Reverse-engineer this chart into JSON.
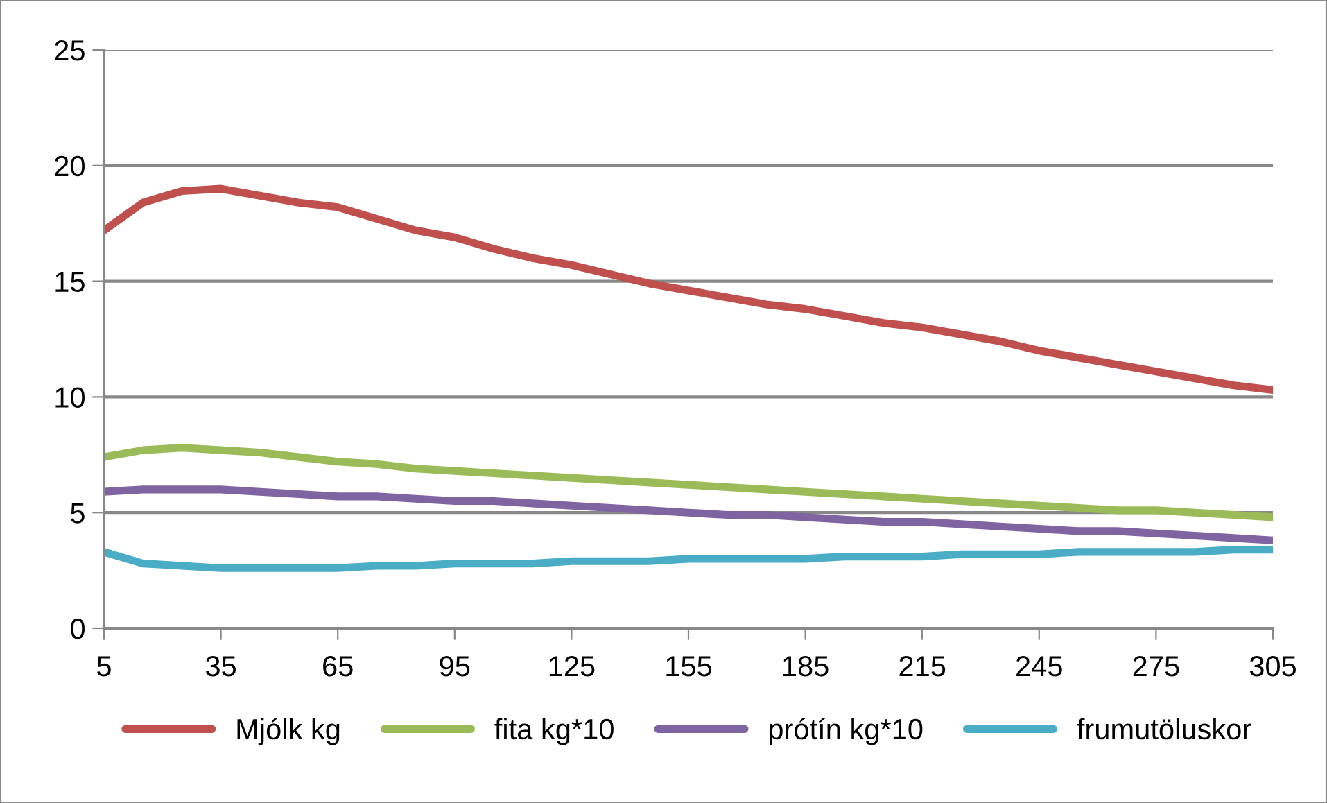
{
  "chart_data": {
    "type": "line",
    "x": [
      5,
      15,
      25,
      35,
      45,
      55,
      65,
      75,
      85,
      95,
      105,
      115,
      125,
      135,
      145,
      155,
      165,
      175,
      185,
      195,
      205,
      215,
      225,
      235,
      245,
      255,
      265,
      275,
      285,
      295,
      305
    ],
    "series": [
      {
        "name": "Mjólk kg",
        "color": "#c0504d",
        "values": [
          17.2,
          18.4,
          18.9,
          19.0,
          18.7,
          18.4,
          18.2,
          17.7,
          17.2,
          16.9,
          16.4,
          16.0,
          15.7,
          15.3,
          14.9,
          14.6,
          14.3,
          14.0,
          13.8,
          13.5,
          13.2,
          13.0,
          12.7,
          12.4,
          12.0,
          11.7,
          11.4,
          11.1,
          10.8,
          10.5,
          10.3
        ]
      },
      {
        "name": "fita kg*10",
        "color": "#9bbb59",
        "values": [
          7.4,
          7.7,
          7.8,
          7.7,
          7.6,
          7.4,
          7.2,
          7.1,
          6.9,
          6.8,
          6.7,
          6.6,
          6.5,
          6.4,
          6.3,
          6.2,
          6.1,
          6.0,
          5.9,
          5.8,
          5.7,
          5.6,
          5.5,
          5.4,
          5.3,
          5.2,
          5.1,
          5.1,
          5.0,
          4.9,
          4.8
        ]
      },
      {
        "name": "prótín kg*10",
        "color": "#8064a2",
        "values": [
          5.9,
          6.0,
          6.0,
          6.0,
          5.9,
          5.8,
          5.7,
          5.7,
          5.6,
          5.5,
          5.5,
          5.4,
          5.3,
          5.2,
          5.1,
          5.0,
          4.9,
          4.9,
          4.8,
          4.7,
          4.6,
          4.6,
          4.5,
          4.4,
          4.3,
          4.2,
          4.2,
          4.1,
          4.0,
          3.9,
          3.8
        ]
      },
      {
        "name": "frumutöluskor",
        "color": "#4bacc6",
        "values": [
          3.3,
          2.8,
          2.7,
          2.6,
          2.6,
          2.6,
          2.6,
          2.7,
          2.7,
          2.8,
          2.8,
          2.8,
          2.9,
          2.9,
          2.9,
          3.0,
          3.0,
          3.0,
          3.0,
          3.1,
          3.1,
          3.1,
          3.2,
          3.2,
          3.2,
          3.3,
          3.3,
          3.3,
          3.3,
          3.4,
          3.4
        ]
      }
    ],
    "xlim": [
      5,
      305
    ],
    "xticks": [
      5,
      35,
      65,
      95,
      125,
      155,
      185,
      215,
      245,
      275,
      305
    ],
    "ylim": [
      0,
      25
    ],
    "yticks": [
      0,
      5,
      10,
      15,
      20,
      25
    ],
    "grid": "y",
    "legend": "bottom",
    "marker": "none",
    "line_style": "solid"
  }
}
